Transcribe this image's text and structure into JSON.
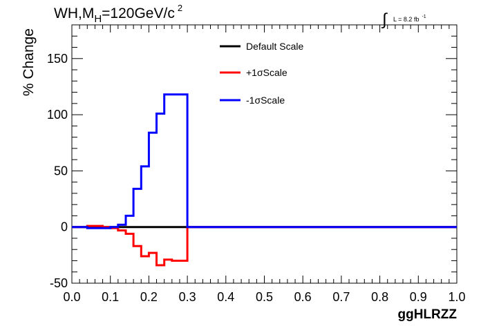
{
  "header": {
    "title_main": "WH,M",
    "title_sub": "H",
    "title_rest": "=120GeV/c",
    "title_sup": "2",
    "lumi_label": "L = 8.2 fb",
    "lumi_sup": "-1"
  },
  "chart_data": {
    "type": "line",
    "title": "WH,MH=120GeV/c2",
    "xlabel": "ggHLRZZ",
    "ylabel": "% Change",
    "xlim": [
      0.0,
      1.0
    ],
    "ylim": [
      -50,
      180
    ],
    "x_ticks": [
      "0.0",
      "0.1",
      "0.2",
      "0.3",
      "0.4",
      "0.5",
      "0.6",
      "0.7",
      "0.8",
      "0.9",
      "1.0"
    ],
    "y_ticks": [
      "-50",
      "0",
      "50",
      "100",
      "150"
    ],
    "legend_position": "top-center",
    "bin_edges": [
      0.0,
      0.02,
      0.04,
      0.06,
      0.08,
      0.1,
      0.12,
      0.14,
      0.16,
      0.18,
      0.2,
      0.22,
      0.24,
      0.26,
      0.28,
      0.3,
      1.0
    ],
    "series": [
      {
        "name": "Default Scale",
        "color": "#000000",
        "values": [
          0,
          0,
          0,
          0,
          0,
          0,
          0,
          0,
          0,
          0,
          0,
          0,
          0,
          0,
          0,
          0
        ]
      },
      {
        "name": "+1σScale",
        "color": "#ff0000",
        "values": [
          0,
          0,
          1,
          1,
          0,
          -1,
          -3,
          -6,
          -17,
          -26,
          -23,
          -34,
          -29,
          -30,
          -30,
          0
        ]
      },
      {
        "name": "-1σScale",
        "color": "#0000ff",
        "values": [
          0,
          0,
          -1,
          -1,
          -1,
          0,
          2,
          10,
          34,
          54,
          84,
          101,
          118,
          118,
          118,
          0
        ]
      }
    ]
  }
}
